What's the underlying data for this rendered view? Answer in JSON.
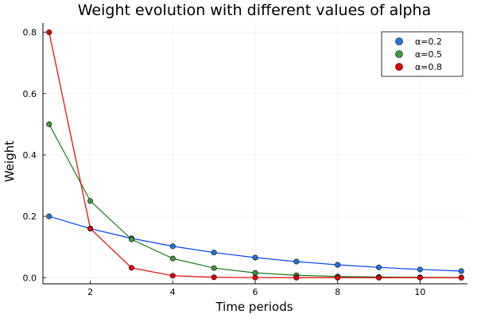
{
  "chart_data": {
    "type": "line",
    "title": "Weight evolution with different values of alpha",
    "xlabel": "Time periods",
    "ylabel": "Weight",
    "xlim": [
      0.85,
      11.15
    ],
    "ylim": [
      -0.02,
      0.83
    ],
    "xticks": [
      2,
      4,
      6,
      8,
      10
    ],
    "yticks": [
      0.0,
      0.2,
      0.4,
      0.6,
      0.8
    ],
    "xtick_labels": [
      "2",
      "4",
      "6",
      "8",
      "10"
    ],
    "ytick_labels": [
      "0.0",
      "0.2",
      "0.4",
      "0.6",
      "0.8"
    ],
    "grid": true,
    "legend_position": "top-right",
    "markers": true,
    "x": [
      1,
      2,
      3,
      4,
      5,
      6,
      7,
      8,
      9,
      10,
      11
    ],
    "series": [
      {
        "name": "α=0.2",
        "color": "#0044ff",
        "marker_color": "#1f77d4",
        "values": [
          0.2,
          0.16,
          0.128,
          0.1024,
          0.0819,
          0.0655,
          0.0524,
          0.0419,
          0.0336,
          0.0268,
          0.0215
        ]
      },
      {
        "name": "α=0.5",
        "color": "#1a7a1a",
        "marker_color": "#3a9a3a",
        "values": [
          0.5,
          0.25,
          0.125,
          0.0625,
          0.0313,
          0.0156,
          0.0078,
          0.0039,
          0.002,
          0.001,
          0.0005
        ]
      },
      {
        "name": "α=0.8",
        "color": "#e60000",
        "marker_color": "#e60000",
        "values": [
          0.8,
          0.16,
          0.032,
          0.0064,
          0.0013,
          0.0003,
          0.0001,
          0.0,
          0.0,
          0.0,
          0.0
        ]
      }
    ]
  }
}
